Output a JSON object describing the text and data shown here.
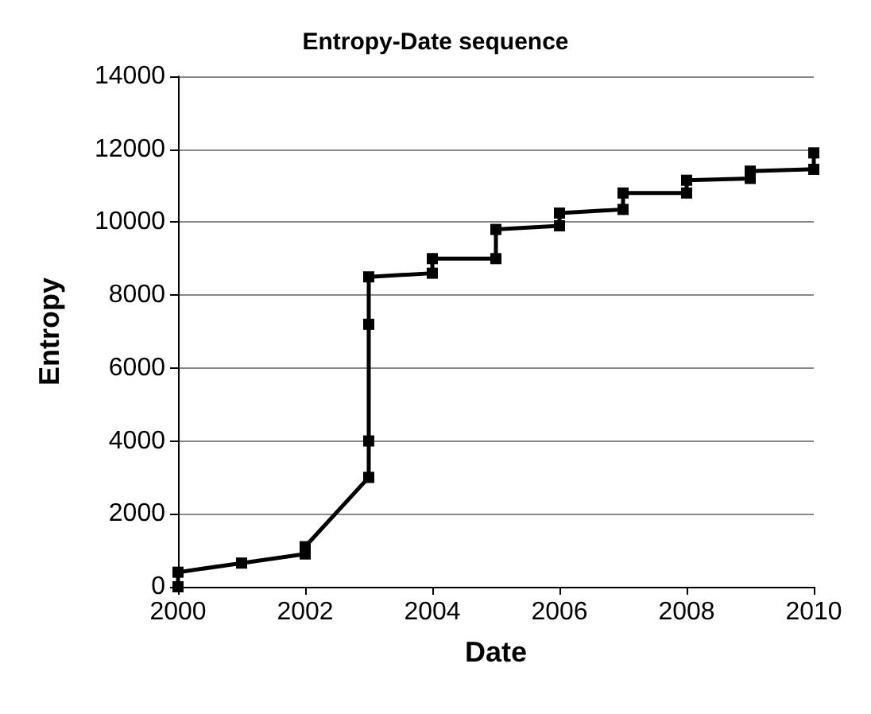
{
  "chart_data": {
    "type": "line",
    "title": "Entropy-Date sequence",
    "xlabel": "Date",
    "ylabel": "Entropy",
    "x": [
      2000,
      2000,
      2001,
      2002,
      2002,
      2003,
      2003,
      2003,
      2003,
      2004,
      2004,
      2005,
      2005,
      2006,
      2006,
      2007,
      2007,
      2008,
      2008,
      2009,
      2009,
      2010,
      2010
    ],
    "series": [
      {
        "color": "#000000",
        "values": [
          0,
          400,
          650,
          900,
          1100,
          3000,
          4000,
          7200,
          8500,
          8600,
          9000,
          9000,
          9800,
          9900,
          10250,
          10350,
          10800,
          10800,
          11150,
          11200,
          11400,
          11450,
          11900
        ]
      }
    ],
    "xlim": [
      2000,
      2010
    ],
    "xticks": [
      2000,
      2002,
      2004,
      2006,
      2008,
      2010
    ],
    "ylim": [
      0,
      14000
    ],
    "yticks": [
      0,
      2000,
      4000,
      6000,
      8000,
      10000,
      12000,
      14000
    ],
    "grid": "y",
    "marker": "square",
    "line_style": "solid"
  }
}
